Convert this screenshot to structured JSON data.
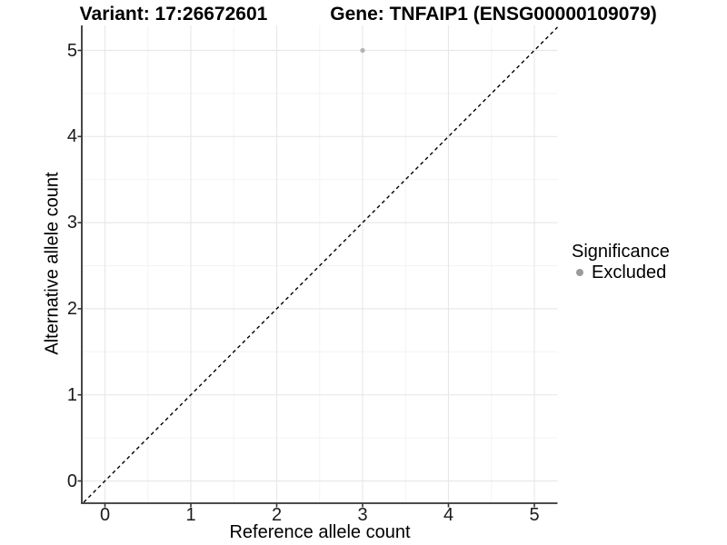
{
  "figure": {
    "titles": {
      "variant": "Variant: 17:26672601",
      "gene": "Gene: TNFAIP1 (ENSG00000109079)"
    }
  },
  "axes": {
    "x": {
      "title": "Reference allele count",
      "tick_labels": [
        "0",
        "1",
        "2",
        "3",
        "4",
        "5"
      ]
    },
    "y": {
      "title": "Alternative allele count",
      "tick_labels": [
        "0",
        "1",
        "2",
        "3",
        "4",
        "5"
      ]
    }
  },
  "legend": {
    "title": "Significance",
    "items": [
      {
        "label": "Excluded",
        "color": "#9b9b9b"
      }
    ]
  },
  "chart_data": {
    "type": "scatter",
    "title": "Variant: 17:26672601 — Gene: TNFAIP1 (ENSG00000109079)",
    "xlabel": "Reference allele count",
    "ylabel": "Alternative allele count",
    "xlim": [
      -0.27,
      5.27
    ],
    "ylim": [
      -0.27,
      5.27
    ],
    "x_ticks": [
      0,
      1,
      2,
      3,
      4,
      5
    ],
    "y_ticks": [
      0,
      1,
      2,
      3,
      4,
      5
    ],
    "x_minor_ticks": [
      0.5,
      1.5,
      2.5,
      3.5,
      4.5
    ],
    "y_minor_ticks": [
      0.5,
      1.5,
      2.5,
      3.5,
      4.5
    ],
    "grid": "major+minor",
    "legend_position": "right",
    "series": [
      {
        "name": "Excluded",
        "color": "#b3b3b3",
        "points": [
          {
            "x": 3,
            "y": 5
          }
        ]
      }
    ],
    "reference_line": {
      "kind": "identity",
      "equation": "y = x",
      "style": "dashed",
      "color": "#000000"
    },
    "style": {
      "background": "#ffffff",
      "grid_major_color": "#e8e8e8",
      "grid_minor_color": "#f3f3f3",
      "axis_color": "#333333",
      "point_color": "#b3b3b3",
      "legend_key_color": "#9b9b9b"
    }
  }
}
